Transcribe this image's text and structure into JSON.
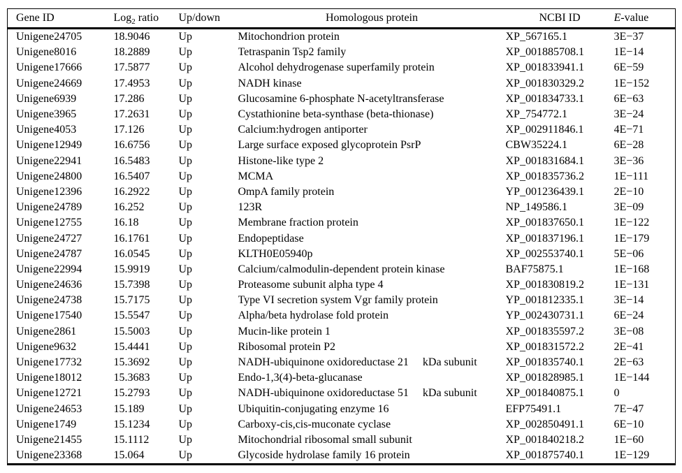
{
  "table": {
    "header": {
      "gene_id": "Gene ID",
      "log2_pre": "Log",
      "log2_sub": "2",
      "log2_post": " ratio",
      "up_down": "Up/down",
      "protein": "Homologous protein",
      "ncbi_id": "NCBI ID",
      "e_italic": "E",
      "e_rest": "-value"
    },
    "rows": [
      {
        "gene_id": "Unigene24705",
        "log2_ratio": "18.9046",
        "up_down": "Up",
        "protein": "Mitochondrion protein",
        "ncbi_id": "XP_567165.1",
        "e_value": "3E−37"
      },
      {
        "gene_id": "Unigene8016",
        "log2_ratio": "18.2889",
        "up_down": "Up",
        "protein": "Tetraspanin Tsp2 family",
        "ncbi_id": "XP_001885708.1",
        "e_value": "1E−14"
      },
      {
        "gene_id": "Unigene17666",
        "log2_ratio": "17.5877",
        "up_down": "Up",
        "protein": "Alcohol dehydrogenase superfamily protein",
        "ncbi_id": "XP_001833941.1",
        "e_value": "6E−59"
      },
      {
        "gene_id": "Unigene24669",
        "log2_ratio": "17.4953",
        "up_down": "Up",
        "protein": "NADH kinase",
        "ncbi_id": "XP_001830329.2",
        "e_value": "1E−152"
      },
      {
        "gene_id": "Unigene6939",
        "log2_ratio": "17.286",
        "up_down": "Up",
        "protein": "Glucosamine 6-phosphate N-acetyltransferase",
        "ncbi_id": "XP_001834733.1",
        "e_value": "6E−63"
      },
      {
        "gene_id": "Unigene3965",
        "log2_ratio": "17.2631",
        "up_down": "Up",
        "protein": "Cystathionine beta-synthase (beta-thionase)",
        "ncbi_id": "XP_754772.1",
        "e_value": "3E−24"
      },
      {
        "gene_id": "Unigene4053",
        "log2_ratio": "17.126",
        "up_down": "Up",
        "protein": "Calcium:hydrogen antiporter",
        "ncbi_id": "XP_002911846.1",
        "e_value": "4E−71"
      },
      {
        "gene_id": "Unigene12949",
        "log2_ratio": "16.6756",
        "up_down": "Up",
        "protein": "Large surface exposed glycoprotein PsrP",
        "ncbi_id": "CBW35224.1",
        "e_value": "6E−28"
      },
      {
        "gene_id": "Unigene22941",
        "log2_ratio": "16.5483",
        "up_down": "Up",
        "protein": "Histone-like type 2",
        "ncbi_id": "XP_001831684.1",
        "e_value": "3E−36"
      },
      {
        "gene_id": "Unigene24800",
        "log2_ratio": "16.5407",
        "up_down": "Up",
        "protein": "MCMA",
        "ncbi_id": "XP_001835736.2",
        "e_value": "1E−111"
      },
      {
        "gene_id": "Unigene12396",
        "log2_ratio": "16.2922",
        "up_down": "Up",
        "protein": "OmpA family protein",
        "ncbi_id": "YP_001236439.1",
        "e_value": "2E−10"
      },
      {
        "gene_id": "Unigene24789",
        "log2_ratio": "16.252",
        "up_down": "Up",
        "protein": "123R",
        "ncbi_id": "NP_149586.1",
        "e_value": "3E−09"
      },
      {
        "gene_id": "Unigene12755",
        "log2_ratio": "16.18",
        "up_down": "Up",
        "protein": "Membrane fraction protein",
        "ncbi_id": "XP_001837650.1",
        "e_value": "1E−122"
      },
      {
        "gene_id": "Unigene24727",
        "log2_ratio": "16.1761",
        "up_down": "Up",
        "protein": "Endopeptidase",
        "ncbi_id": "XP_001837196.1",
        "e_value": "1E−179"
      },
      {
        "gene_id": "Unigene24787",
        "log2_ratio": "16.0545",
        "up_down": "Up",
        "protein": "KLTH0E05940p",
        "ncbi_id": "XP_002553740.1",
        "e_value": "5E−06"
      },
      {
        "gene_id": "Unigene22994",
        "log2_ratio": "15.9919",
        "up_down": "Up",
        "protein": "Calcium/calmodulin-dependent protein kinase",
        "ncbi_id": "BAF75875.1",
        "e_value": "1E−168"
      },
      {
        "gene_id": "Unigene24636",
        "log2_ratio": "15.7398",
        "up_down": "Up",
        "protein": "Proteasome subunit alpha type 4",
        "ncbi_id": "XP_001830819.2",
        "e_value": "1E−131"
      },
      {
        "gene_id": "Unigene24738",
        "log2_ratio": "15.7175",
        "up_down": "Up",
        "protein": "Type VI secretion system Vgr family protein",
        "ncbi_id": "YP_001812335.1",
        "e_value": "3E−14"
      },
      {
        "gene_id": "Unigene17540",
        "log2_ratio": "15.5547",
        "up_down": "Up",
        "protein": "Alpha/beta hydrolase fold protein",
        "ncbi_id": "YP_002430731.1",
        "e_value": "6E−24"
      },
      {
        "gene_id": "Unigene2861",
        "log2_ratio": "15.5003",
        "up_down": "Up",
        "protein": "Mucin-like protein 1",
        "ncbi_id": "XP_001835597.2",
        "e_value": "3E−08"
      },
      {
        "gene_id": "Unigene9632",
        "log2_ratio": "15.4441",
        "up_down": "Up",
        "protein": "Ribosomal protein P2",
        "ncbi_id": "XP_001831572.2",
        "e_value": "2E−41"
      },
      {
        "gene_id": "Unigene17732",
        "log2_ratio": "15.3692",
        "up_down": "Up",
        "protein": "NADH-ubiquinone oxidoreductase 21  kDa subunit",
        "ncbi_id": "XP_001835740.1",
        "e_value": "2E−63"
      },
      {
        "gene_id": "Unigene18012",
        "log2_ratio": "15.3683",
        "up_down": "Up",
        "protein": "Endo-1,3(4)-beta-glucanase",
        "ncbi_id": "XP_001828985.1",
        "e_value": "1E−144"
      },
      {
        "gene_id": "Unigene12721",
        "log2_ratio": "15.2793",
        "up_down": "Up",
        "protein": "NADH-ubiquinone oxidoreductase 51  kDa subunit",
        "ncbi_id": "XP_001840875.1",
        "e_value": "0"
      },
      {
        "gene_id": "Unigene24653",
        "log2_ratio": "15.189",
        "up_down": "Up",
        "protein": "Ubiquitin-conjugating enzyme 16",
        "ncbi_id": "EFP75491.1",
        "e_value": "7E−47"
      },
      {
        "gene_id": "Unigene1749",
        "log2_ratio": "15.1234",
        "up_down": "Up",
        "protein": "Carboxy-cis,cis-muconate cyclase",
        "ncbi_id": "XP_002850491.1",
        "e_value": "6E−10"
      },
      {
        "gene_id": "Unigene21455",
        "log2_ratio": "15.1112",
        "up_down": "Up",
        "protein": "Mitochondrial ribosomal small subunit",
        "ncbi_id": "XP_001840218.2",
        "e_value": "1E−60"
      },
      {
        "gene_id": "Unigene23368",
        "log2_ratio": "15.064",
        "up_down": "Up",
        "protein": "Glycoside hydrolase family 16 protein",
        "ncbi_id": "XP_001875740.1",
        "e_value": "1E−129"
      }
    ]
  }
}
